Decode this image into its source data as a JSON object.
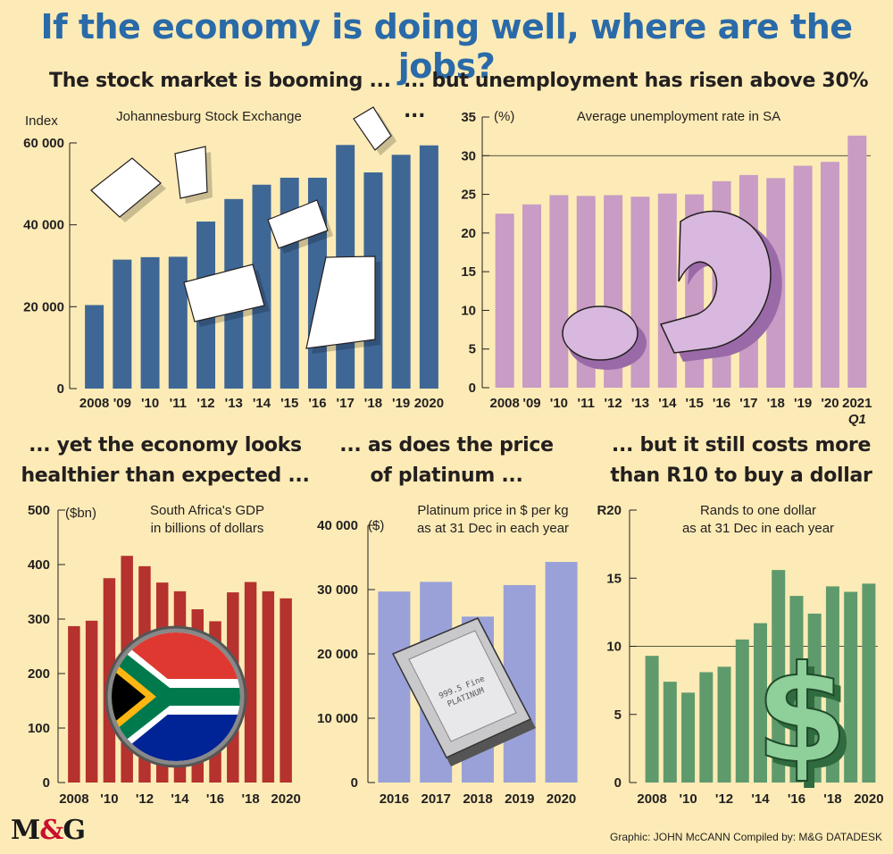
{
  "title": "If the economy is doing well, where are the jobs?",
  "credit": "Graphic: JOHN McCANN  Compiled by: M&G DATADESK",
  "logo": {
    "left": "M",
    "amp": "&",
    "right": "G"
  },
  "colors": {
    "background": "#fcebb6",
    "title": "#2a6aa8"
  },
  "chart_data": [
    {
      "type": "bar",
      "heading": "The stock market is booming ...",
      "title": "Johannesburg Stock Exchange",
      "ylabel": "Index",
      "ylim": [
        0,
        60000
      ],
      "yticks": [
        0,
        20000,
        40000,
        60000
      ],
      "ytick_labels": [
        "0",
        "20 000",
        "40 000",
        "60 000"
      ],
      "categories": [
        "2008",
        "'09",
        "'10",
        "'11",
        "'12",
        "'13",
        "'14",
        "'15",
        "'16",
        "'17",
        "'18",
        "'19",
        "2020"
      ],
      "values": [
        20400,
        31500,
        32100,
        32200,
        40800,
        46300,
        49800,
        51500,
        51500,
        59500,
        52800,
        57100,
        59400
      ],
      "color": "#3f6796",
      "decoration": "falling-paper"
    },
    {
      "type": "bar",
      "heading": "... but unemployment has risen above 30% ...",
      "title": "Average unemployment rate in SA",
      "ylabel": "(%)",
      "ylim": [
        0,
        35
      ],
      "yticks": [
        0,
        5,
        10,
        15,
        20,
        25,
        30,
        35
      ],
      "ytick_labels": [
        "0",
        "5",
        "10",
        "15",
        "20",
        "25",
        "30",
        "35"
      ],
      "reference_line": 30,
      "categories": [
        "2008",
        "'09",
        "'10",
        "'11",
        "'12",
        "'13",
        "'14",
        "'15",
        "'16",
        "'17",
        "'18",
        "'19",
        "'20",
        "2021"
      ],
      "category_sublabels": [
        "",
        "",
        "",
        "",
        "",
        "",
        "",
        "",
        "",
        "",
        "",
        "",
        "",
        "Q1"
      ],
      "values": [
        22.5,
        23.7,
        24.9,
        24.8,
        24.9,
        24.7,
        25.1,
        25.0,
        26.7,
        27.5,
        27.1,
        28.7,
        29.2,
        32.6
      ],
      "color": "#c89cc4",
      "decoration": "question-mark"
    },
    {
      "type": "bar",
      "heading": "... yet the economy looks healthier than expected ...",
      "heading_lines": [
        "... yet the economy looks",
        "healthier than expected ..."
      ],
      "title": "South Africa's GDP in billions of dollars",
      "title_lines": [
        "South Africa's GDP",
        "in billions of dollars"
      ],
      "ylabel": "($bn)",
      "ylim": [
        0,
        500
      ],
      "yticks": [
        0,
        100,
        200,
        300,
        400,
        500
      ],
      "ytick_labels": [
        "0",
        "100",
        "200",
        "300",
        "400",
        "500"
      ],
      "categories": [
        "2008",
        "",
        "'10",
        "",
        "'12",
        "",
        "'14",
        "",
        "'16",
        "",
        "'18",
        "",
        "2020"
      ],
      "values": [
        287,
        297,
        375,
        416,
        397,
        367,
        351,
        318,
        296,
        349,
        368,
        351,
        338
      ],
      "color": "#b5322e",
      "decoration": "sa-flag"
    },
    {
      "type": "bar",
      "heading": "... as does the price of platinum ...",
      "heading_lines": [
        "... as does the price",
        "of platinum ..."
      ],
      "title": "Platinum price in $ per kg as at 31 Dec in each year",
      "title_lines": [
        "Platinum price in $ per kg",
        "as at 31 Dec in each year"
      ],
      "ylabel": "($)",
      "ylim": [
        0,
        40000
      ],
      "yticks": [
        0,
        10000,
        20000,
        30000,
        40000
      ],
      "ytick_labels": [
        "0",
        "10 000",
        "20 000",
        "30 000",
        "40 000"
      ],
      "categories": [
        "2016",
        "2017",
        "2018",
        "2019",
        "2020"
      ],
      "values": [
        29700,
        31200,
        25800,
        30700,
        34300
      ],
      "color": "#9aa1d8",
      "decoration": "platinum-bar",
      "decoration_text": [
        "999.5 Fine",
        "PLATINUM"
      ]
    },
    {
      "type": "bar",
      "heading": "... but it still costs more than R10 to buy a dollar",
      "heading_lines": [
        "... but it still costs more",
        "than R10 to buy a dollar"
      ],
      "title": "Rands to one dollar as at 31 Dec in each year",
      "title_lines": [
        "Rands to one dollar",
        "as at 31 Dec in each year"
      ],
      "ylabel": "",
      "ylim": [
        0,
        20
      ],
      "yticks": [
        0,
        5,
        10,
        15,
        20
      ],
      "ytick_labels": [
        "0",
        "5",
        "10",
        "15",
        "R20"
      ],
      "reference_line": 10,
      "categories": [
        "2008",
        "",
        "'10",
        "",
        "'12",
        "",
        "'14",
        "",
        "'16",
        "",
        "'18",
        "",
        "2020"
      ],
      "values": [
        9.3,
        7.4,
        6.6,
        8.1,
        8.5,
        10.5,
        11.7,
        15.6,
        13.7,
        12.4,
        14.4,
        14.0,
        14.6
      ],
      "color": "#5f9a6c",
      "decoration": "dollar-sign"
    }
  ]
}
